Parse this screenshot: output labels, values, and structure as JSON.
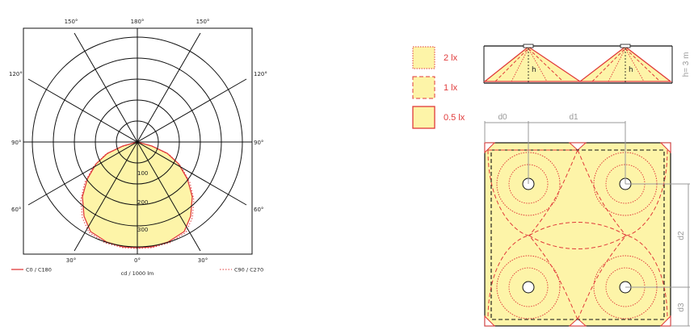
{
  "polar": {
    "angle_labels": {
      "top_150_left": "150°",
      "top_180": "180°",
      "top_150_right": "150°",
      "left_120": "120°",
      "right_120": "120°",
      "left_90": "90°",
      "right_90": "90°",
      "left_60": "60°",
      "right_60": "60°",
      "bottom_30_left": "30°",
      "bottom_0": "0°",
      "bottom_30_right": "30°"
    },
    "radial_ticks": [
      "100",
      "200",
      "300"
    ],
    "unit_label": "cd / 1000 lm",
    "legend": {
      "c0": "C0 / C180",
      "c90": "C90 / C270"
    }
  },
  "illuminance": {
    "legend": [
      {
        "label": "2 lx",
        "style": "dotted"
      },
      {
        "label": "1 lx",
        "style": "dashed"
      },
      {
        "label": "0.5 lx",
        "style": "solid"
      }
    ],
    "height_label": "h= 3 m",
    "h_marker": "h",
    "dims": {
      "d0": "d0",
      "d1": "d1",
      "d2": "d2",
      "d3": "d3"
    }
  },
  "colors": {
    "fill": "#fdf4a8",
    "red": "#e03a3a",
    "grey": "#9a9a9a",
    "ink": "#111111"
  }
}
